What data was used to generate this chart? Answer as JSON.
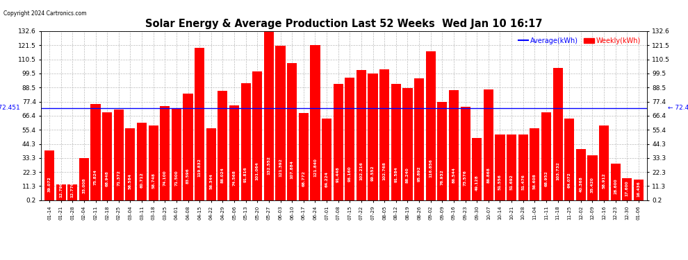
{
  "title": "Solar Energy & Average Production Last 52 Weeks  Wed Jan 10 16:17",
  "copyright": "Copyright 2024 Cartronics.com",
  "average_label": "Average(kWh)",
  "weekly_label": "Weekly(kWh)",
  "average_value": 72.451,
  "ylim_min": 0.2,
  "ylim_max": 132.6,
  "yticks": [
    0.2,
    11.3,
    22.3,
    33.3,
    44.3,
    55.4,
    66.4,
    77.4,
    88.5,
    99.5,
    110.5,
    121.5,
    132.6
  ],
  "bar_color": "#ff0000",
  "avg_line_color": "#0000ff",
  "grid_color": "#bbbbbb",
  "background_color": "#ffffff",
  "categories": [
    "01-14",
    "01-21",
    "01-28",
    "02-04",
    "02-11",
    "02-18",
    "02-25",
    "03-04",
    "03-11",
    "03-18",
    "03-25",
    "04-01",
    "04-08",
    "04-15",
    "04-22",
    "04-29",
    "05-06",
    "05-13",
    "05-20",
    "05-27",
    "06-03",
    "06-10",
    "06-17",
    "06-24",
    "07-01",
    "07-08",
    "07-15",
    "07-22",
    "07-29",
    "08-05",
    "08-12",
    "08-19",
    "08-26",
    "09-02",
    "09-09",
    "09-16",
    "09-23",
    "09-30",
    "10-07",
    "10-14",
    "10-21",
    "10-28",
    "11-04",
    "11-11",
    "11-18",
    "11-25",
    "12-02",
    "12-09",
    "12-16",
    "12-23",
    "12-30",
    "01-06"
  ],
  "values": [
    39.072,
    12.796,
    12.776,
    33.008,
    75.824,
    68.948,
    71.372,
    56.584,
    60.712,
    58.748,
    74.1,
    71.5,
    83.596,
    119.832,
    56.344,
    86.024,
    74.568,
    91.816,
    101.064,
    132.552,
    121.392,
    107.884,
    68.772,
    121.84,
    64.224,
    91.448,
    96.16,
    102.216,
    99.552,
    102.768,
    91.584,
    88.24,
    95.892,
    116.856,
    76.932,
    86.544,
    73.576,
    49.128,
    86.868,
    51.556,
    51.692,
    51.476,
    56.608,
    68.952,
    103.732,
    64.072,
    40.368,
    35.42,
    58.912,
    28.6,
    17.6,
    16.436
  ]
}
